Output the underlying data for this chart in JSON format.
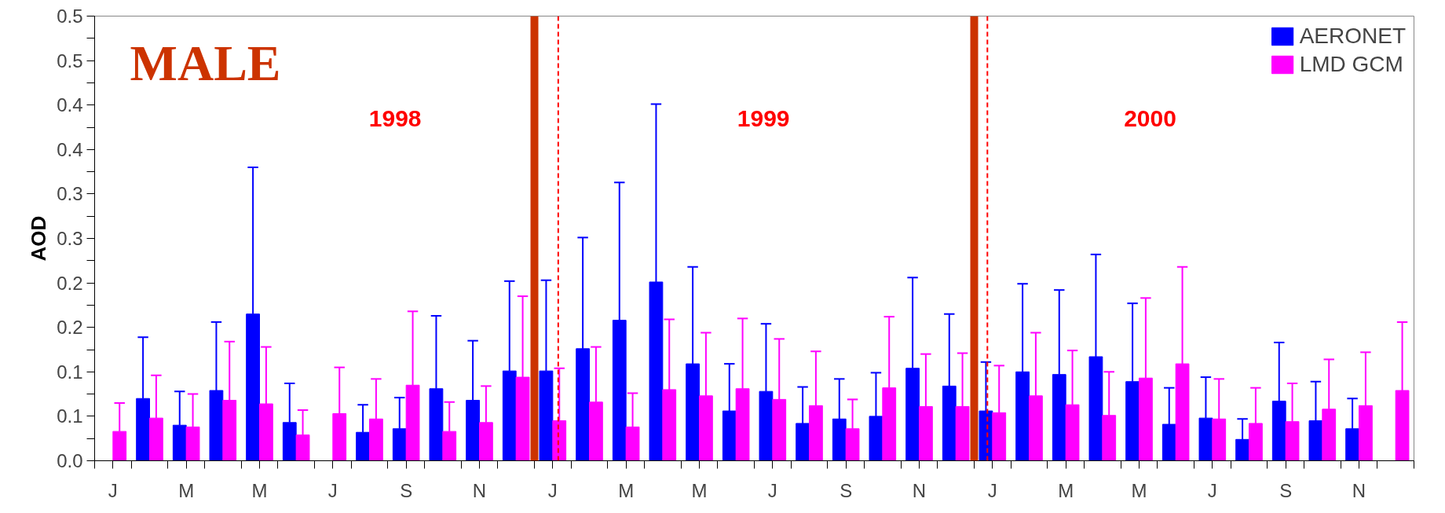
{
  "chart_data": {
    "type": "bar",
    "title": "MALE",
    "ylabel": "AOD",
    "categories": [
      "J",
      null,
      "M",
      null,
      "M",
      null,
      "J",
      null,
      "S",
      null,
      "N",
      null,
      "J",
      null,
      "M",
      null,
      "M",
      null,
      "J",
      null,
      "S",
      null,
      "N",
      null,
      "J",
      null,
      "M",
      null,
      "M",
      null,
      "J",
      null,
      "S",
      null,
      "N",
      null
    ],
    "series": [
      {
        "name": "AERONET",
        "color": "#0000ff",
        "values": [
          null,
          0.07,
          0.04,
          0.079,
          0.165,
          0.043,
          null,
          0.032,
          0.036,
          0.081,
          0.068,
          0.101,
          0.101,
          0.126,
          0.158,
          0.201,
          0.109,
          0.056,
          0.078,
          0.042,
          0.047,
          0.05,
          0.104,
          0.084,
          0.056,
          0.1,
          0.097,
          0.117,
          0.089,
          0.041,
          0.048,
          0.024,
          0.067,
          0.045,
          0.036,
          null
        ],
        "errors": [
          null,
          [
            0.07,
            0.139
          ],
          [
            0.04,
            0.078
          ],
          [
            0.079,
            0.156
          ],
          [
            0.165,
            0.33
          ],
          [
            0.043,
            0.087
          ],
          null,
          [
            0.032,
            0.063
          ],
          [
            0.036,
            0.071
          ],
          [
            0.081,
            0.163
          ],
          [
            0.068,
            0.135
          ],
          [
            0.101,
            0.202
          ],
          [
            0.101,
            0.203
          ],
          [
            0.126,
            0.251
          ],
          [
            0.158,
            0.313
          ],
          [
            0.201,
            0.401
          ],
          [
            0.109,
            0.218
          ],
          [
            0.056,
            0.109
          ],
          [
            0.078,
            0.154
          ],
          [
            0.042,
            0.083
          ],
          [
            0.047,
            0.092
          ],
          [
            0.05,
            0.099
          ],
          [
            0.104,
            0.206
          ],
          [
            0.084,
            0.165
          ],
          [
            0.056,
            0.111
          ],
          [
            0.1,
            0.199
          ],
          [
            0.097,
            0.192
          ],
          [
            0.117,
            0.232
          ],
          [
            0.089,
            0.177
          ],
          [
            0.041,
            0.082
          ],
          [
            0.048,
            0.094
          ],
          [
            0.024,
            0.047
          ],
          [
            0.067,
            0.133
          ],
          [
            0.045,
            0.089
          ],
          [
            0.036,
            0.07
          ],
          null
        ]
      },
      {
        "name": "LMD GCM",
        "color": "#ff00ff",
        "values": [
          0.033,
          0.048,
          0.038,
          0.068,
          0.064,
          0.029,
          0.053,
          0.047,
          0.085,
          0.033,
          0.043,
          0.094,
          0.045,
          0.066,
          0.038,
          0.08,
          0.073,
          0.081,
          0.069,
          0.062,
          0.036,
          0.082,
          0.061,
          0.061,
          0.054,
          0.073,
          0.063,
          0.051,
          0.093,
          0.109,
          0.047,
          0.042,
          0.044,
          0.058,
          0.062,
          0.079
        ],
        "errors": [
          [
            0.033,
            0.065
          ],
          [
            0.048,
            0.096
          ],
          [
            0.038,
            0.075
          ],
          [
            0.068,
            0.134
          ],
          [
            0.064,
            0.128
          ],
          [
            0.029,
            0.057
          ],
          [
            0.053,
            0.105
          ],
          [
            0.047,
            0.092
          ],
          [
            0.085,
            0.168
          ],
          [
            0.033,
            0.066
          ],
          [
            0.043,
            0.084
          ],
          [
            0.094,
            0.185
          ],
          [
            0.045,
            0.104
          ],
          [
            0.066,
            0.128
          ],
          [
            0.038,
            0.076
          ],
          [
            0.08,
            0.159
          ],
          [
            0.073,
            0.144
          ],
          [
            0.081,
            0.16
          ],
          [
            0.069,
            0.137
          ],
          [
            0.062,
            0.123
          ],
          [
            0.036,
            0.069
          ],
          [
            0.082,
            0.162
          ],
          [
            0.061,
            0.12
          ],
          [
            0.061,
            0.121
          ],
          [
            0.054,
            0.107
          ],
          [
            0.073,
            0.144
          ],
          [
            0.063,
            0.124
          ],
          [
            0.051,
            0.1
          ],
          [
            0.093,
            0.183
          ],
          [
            0.109,
            0.218
          ],
          [
            0.047,
            0.092
          ],
          [
            0.042,
            0.082
          ],
          [
            0.044,
            0.087
          ],
          [
            0.058,
            0.114
          ],
          [
            0.062,
            0.122
          ],
          [
            0.079,
            0.156
          ]
        ]
      }
    ],
    "ylim": [
      0,
      0.5
    ],
    "yticks": [
      {
        "value": 0,
        "label": "0.0"
      },
      {
        "value": 0.025,
        "label": null
      },
      {
        "value": 0.05,
        "label": "0.1"
      },
      {
        "value": 0.075,
        "label": null
      },
      {
        "value": 0.1,
        "label": "0.1"
      },
      {
        "value": 0.125,
        "label": null
      },
      {
        "value": 0.15,
        "label": "0.2"
      },
      {
        "value": 0.175,
        "label": null
      },
      {
        "value": 0.2,
        "label": "0.2"
      },
      {
        "value": 0.225,
        "label": null
      },
      {
        "value": 0.25,
        "label": "0.3"
      },
      {
        "value": 0.275,
        "label": null
      },
      {
        "value": 0.3,
        "label": "0.3"
      },
      {
        "value": 0.325,
        "label": null
      },
      {
        "value": 0.35,
        "label": "0.4"
      },
      {
        "value": 0.375,
        "label": null
      },
      {
        "value": 0.4,
        "label": "0.4"
      },
      {
        "value": 0.425,
        "label": null
      },
      {
        "value": 0.45,
        "label": "0.5"
      },
      {
        "value": 0.475,
        "label": null
      },
      {
        "value": 0.5,
        "label": "0.5"
      }
    ],
    "annotations": [
      "1998",
      "1999",
      "2000"
    ],
    "grid": false,
    "legend": "top right"
  }
}
